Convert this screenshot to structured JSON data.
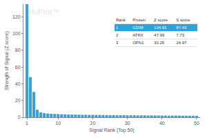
{
  "chart_data": {
    "type": "bar",
    "x_label": "Signal Rank (Top 50)",
    "y_label": "Strength of Signal (Z score)",
    "annotations": [
      "HuProt™"
    ],
    "x": [
      1,
      2,
      3,
      4,
      5,
      6,
      7,
      8,
      9,
      10,
      11,
      12,
      13,
      14,
      15,
      16,
      17,
      18,
      19,
      20,
      21,
      22,
      23,
      24,
      25,
      26,
      27,
      28,
      29,
      30,
      31,
      32,
      33,
      34,
      35,
      36,
      37,
      38,
      39,
      40,
      41,
      42,
      43,
      44,
      45,
      46,
      47,
      48,
      49,
      50
    ],
    "values": [
      134.91,
      47.99,
      30.25,
      9,
      6,
      5,
      4.5,
      4.2,
      4,
      3.8,
      3.6,
      3.5,
      3.4,
      3.3,
      3.2,
      3.1,
      3,
      3,
      2.9,
      2.9,
      2.8,
      2.8,
      2.7,
      2.7,
      2.6,
      2.6,
      2.5,
      2.5,
      2.5,
      2.4,
      2.4,
      2.4,
      2.3,
      2.3,
      2.3,
      2.2,
      2.2,
      2.2,
      2.1,
      2.1,
      2.1,
      2,
      2,
      2,
      2,
      1.9,
      1.9,
      1.9,
      1.9,
      1.8
    ],
    "color": "#3a9fd6",
    "xlim": [
      0,
      51
    ],
    "xticks": [
      1,
      10,
      20,
      30,
      40,
      50
    ],
    "ylim": [
      0,
      135
    ],
    "yticks": [
      0,
      20,
      40,
      60,
      80,
      100,
      120
    ],
    "grid": false
  },
  "inset_table": {
    "columns": [
      "Rank",
      "Protein",
      "Z score",
      "S score"
    ],
    "rows": [
      [
        1,
        "CD38",
        134.91,
        87.43
      ],
      [
        2,
        "ATRX",
        47.99,
        7.73
      ],
      [
        3,
        "OPN1",
        30.25,
        26.97
      ]
    ],
    "highlight_row": 1
  }
}
